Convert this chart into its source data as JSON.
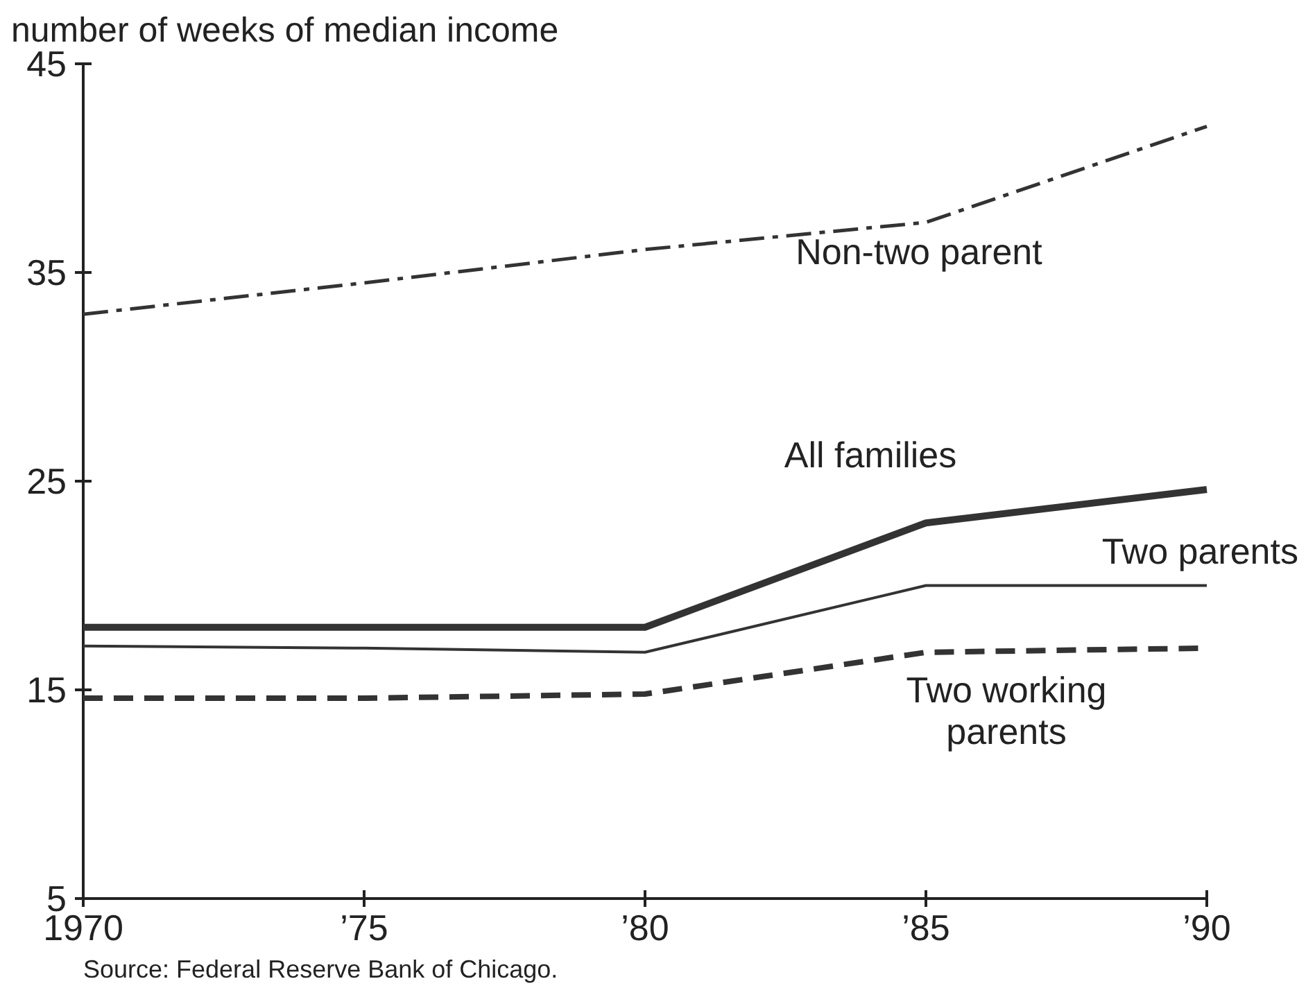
{
  "chart_data": {
    "type": "line",
    "ylabel": "number of weeks of median income",
    "x": [
      1970,
      1975,
      1980,
      1985,
      1990
    ],
    "xlim": [
      1970,
      1990
    ],
    "xticks": [
      1970,
      {
        "value": 1975,
        "label": "’75"
      },
      {
        "value": 1980,
        "label": "’80"
      },
      {
        "value": 1985,
        "label": "’85"
      },
      {
        "value": 1990,
        "label": "’90"
      }
    ],
    "ylim": [
      5,
      45
    ],
    "yticks": [
      5,
      15,
      25,
      35,
      45
    ],
    "grid": false,
    "marker": "none",
    "series": [
      {
        "name": "Non-two parent",
        "color": "#333333",
        "line_style": "dashdot",
        "values": [
          33.0,
          34.5,
          36.1,
          37.4,
          42.0
        ]
      },
      {
        "name": "All families",
        "color": "#333333",
        "line_style": "solid",
        "values": [
          18.0,
          18.0,
          18.0,
          23.0,
          24.6
        ]
      },
      {
        "name": "Two parents",
        "color": "#333333",
        "line_style": "solid",
        "values": [
          17.1,
          17.0,
          16.8,
          20.0,
          20.0
        ]
      },
      {
        "name": "Two working parents",
        "color": "#333333",
        "line_style": "dashed",
        "values": [
          14.6,
          14.6,
          14.8,
          16.8,
          17.0
        ]
      }
    ],
    "annotations": [
      "Source: Federal Reserve Bank of Chicago."
    ]
  }
}
